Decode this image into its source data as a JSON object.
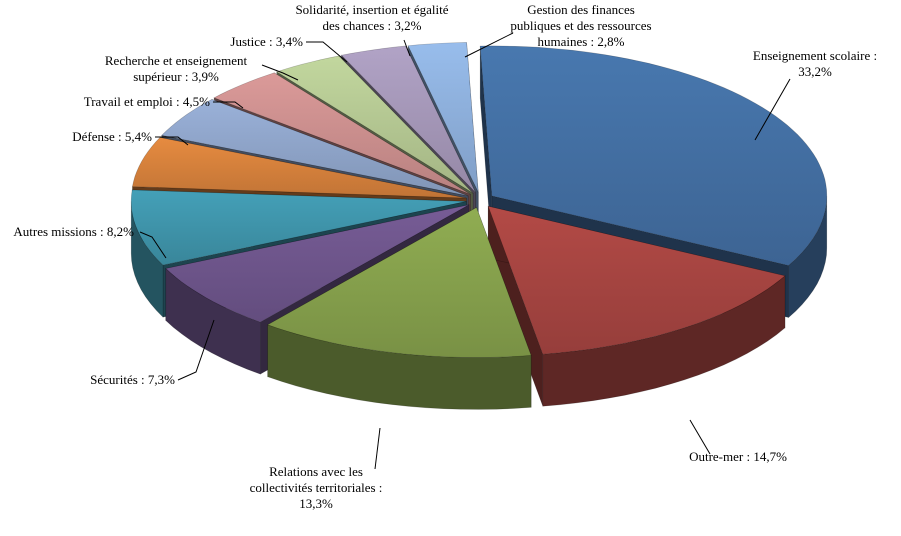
{
  "chart_data": {
    "type": "pie",
    "style": "3d-exploded",
    "legend": "none",
    "title": "",
    "slices": [
      {
        "label_lines": [
          "Enseignement scolaire :",
          "33,2%"
        ],
        "value": 33.2,
        "color": "#4572A7"
      },
      {
        "label_lines": [
          "Outre-mer : 14,7%"
        ],
        "value": 14.7,
        "color": "#AA4643"
      },
      {
        "label_lines": [
          "Relations avec les",
          "collectivités territoriales :",
          "13,3%"
        ],
        "value": 13.3,
        "color": "#89A54E"
      },
      {
        "label_lines": [
          "Sécurités : 7,3%"
        ],
        "value": 7.3,
        "color": "#71588F"
      },
      {
        "label_lines": [
          "Autres missions : 8,2%"
        ],
        "value": 8.2,
        "color": "#4198AF"
      },
      {
        "label_lines": [
          "Défense : 5,4%"
        ],
        "value": 5.4,
        "color": "#DB843D"
      },
      {
        "label_lines": [
          "Travail et emploi : 4,5%"
        ],
        "value": 4.5,
        "color": "#93A9CF"
      },
      {
        "label_lines": [
          "Recherche et enseignement",
          "supérieur : 3,9%"
        ],
        "value": 3.9,
        "color": "#D19392"
      },
      {
        "label_lines": [
          "Justice : 3,4%"
        ],
        "value": 3.4,
        "color": "#B9CD96"
      },
      {
        "label_lines": [
          "Solidarité, insertion et égalité",
          "des chances : 3,2%"
        ],
        "value": 3.2,
        "color": "#A99BBD"
      },
      {
        "label_lines": [
          "Gestion des finances",
          "publiques et des ressources",
          "humaines : 2,8%"
        ],
        "value": 2.8,
        "color": "#91B4E1"
      }
    ]
  }
}
